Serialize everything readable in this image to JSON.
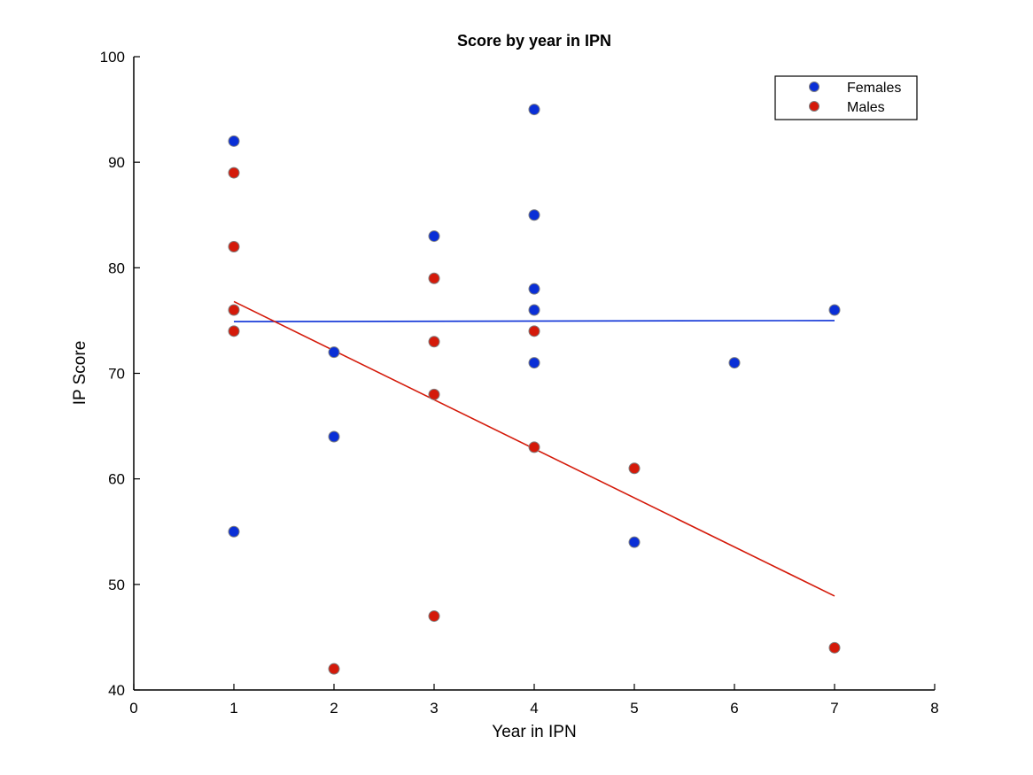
{
  "chart_data": {
    "type": "scatter",
    "title": "Score by year in IPN",
    "xlabel": "Year in IPN",
    "ylabel": "IP Score",
    "xlim": [
      0,
      8
    ],
    "ylim": [
      40,
      100
    ],
    "xticks": [
      "0",
      "1",
      "2",
      "3",
      "4",
      "5",
      "6",
      "7",
      "8"
    ],
    "yticks": [
      "40",
      "50",
      "60",
      "70",
      "80",
      "90",
      "100"
    ],
    "grid": false,
    "legend_position": "top-right",
    "series": [
      {
        "name": "Females",
        "color": "#0a2fd6",
        "points": [
          {
            "x": 1,
            "y": 92
          },
          {
            "x": 1,
            "y": 55
          },
          {
            "x": 2,
            "y": 72
          },
          {
            "x": 2,
            "y": 64
          },
          {
            "x": 3,
            "y": 83
          },
          {
            "x": 4,
            "y": 95
          },
          {
            "x": 4,
            "y": 85
          },
          {
            "x": 4,
            "y": 78
          },
          {
            "x": 4,
            "y": 76
          },
          {
            "x": 4,
            "y": 71
          },
          {
            "x": 5,
            "y": 54
          },
          {
            "x": 6,
            "y": 71
          },
          {
            "x": 7,
            "y": 76
          }
        ],
        "fit_line": {
          "x": [
            1,
            7
          ],
          "y": [
            74.9,
            75.0
          ]
        }
      },
      {
        "name": "Males",
        "color": "#d41a0a",
        "points": [
          {
            "x": 1,
            "y": 89
          },
          {
            "x": 1,
            "y": 82
          },
          {
            "x": 1,
            "y": 76
          },
          {
            "x": 1,
            "y": 74
          },
          {
            "x": 2,
            "y": 42
          },
          {
            "x": 3,
            "y": 79
          },
          {
            "x": 3,
            "y": 73
          },
          {
            "x": 3,
            "y": 68
          },
          {
            "x": 3,
            "y": 47
          },
          {
            "x": 4,
            "y": 74
          },
          {
            "x": 4,
            "y": 63
          },
          {
            "x": 5,
            "y": 61
          },
          {
            "x": 7,
            "y": 44
          }
        ],
        "fit_line": {
          "x": [
            1,
            7
          ],
          "y": [
            76.8,
            48.9
          ]
        }
      }
    ]
  }
}
